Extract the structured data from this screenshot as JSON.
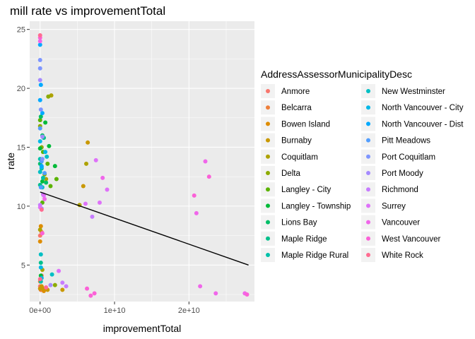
{
  "chart_data": {
    "type": "scatter",
    "title": "mill rate vs improvementTotal",
    "xlabel": "improvementTotal",
    "ylabel": "rate",
    "xlim": [
      -1400000000.0,
      28800000000.0
    ],
    "ylim": [
      1.9,
      25.7
    ],
    "x_ticks": [
      {
        "value": 0,
        "label": "0e+00"
      },
      {
        "value": 10000000000.0,
        "label": "1e+10"
      },
      {
        "value": 20000000000.0,
        "label": "2e+10"
      }
    ],
    "y_ticks": [
      {
        "value": 5,
        "label": "5"
      },
      {
        "value": 10,
        "label": "10"
      },
      {
        "value": 15,
        "label": "15"
      },
      {
        "value": 20,
        "label": "20"
      },
      {
        "value": 25,
        "label": "25"
      }
    ],
    "grid": true,
    "legend": {
      "title": "AddressAssessorMunicipalityDesc",
      "placement": "right",
      "columns": 2
    },
    "trend_line": {
      "x": [
        0,
        28000000000.0
      ],
      "y": [
        11.2,
        5.0
      ],
      "color": "#000000"
    },
    "series": [
      {
        "name": "Anmore",
        "color": "#F8766D",
        "x": [
          0,
          100000000.0,
          0,
          200000000.0
        ],
        "y": [
          3.2,
          2.9,
          7.5,
          4.1
        ]
      },
      {
        "name": "Belcarra",
        "color": "#EE7F3A",
        "x": [
          0,
          200000000.0,
          100000000.0
        ],
        "y": [
          3.6,
          7.8,
          2.9
        ]
      },
      {
        "name": "Bowen Island",
        "color": "#DE8C00",
        "x": [
          0,
          500000000.0,
          100000000.0
        ],
        "y": [
          7.0,
          2.8,
          8.3
        ]
      },
      {
        "name": "Burnaby",
        "color": "#C99800",
        "x": [
          0,
          200000000.0,
          500000000.0,
          1000000000.0,
          3000000000.0,
          6400000000.0,
          5800000000.0
        ],
        "y": [
          3.0,
          3.2,
          3.0,
          2.9,
          2.9,
          15.4,
          11.7
        ]
      },
      {
        "name": "Coquitlam",
        "color": "#AEA200",
        "x": [
          0,
          300000000.0,
          800000000.0,
          1500000000.0,
          5300000000.0,
          6200000000.0
        ],
        "y": [
          8.0,
          4.6,
          12.3,
          19.4,
          10.1,
          13.6
        ]
      },
      {
        "name": "Delta",
        "color": "#8CAB00",
        "x": [
          0,
          200000000.0,
          600000000.0,
          1100000000.0,
          2000000000.0
        ],
        "y": [
          16.8,
          15.0,
          12.7,
          19.3,
          3.3
        ]
      },
      {
        "name": "Langley - City",
        "color": "#5BB300",
        "x": [
          0,
          400000000.0,
          1000000000.0,
          1400000000.0,
          2200000000.0,
          300000000.0
        ],
        "y": [
          17.3,
          14.6,
          13.6,
          11.7,
          12.3,
          10.3
        ]
      },
      {
        "name": "Langley - Township",
        "color": "#00BA38",
        "x": [
          0,
          300000000.0,
          700000000.0,
          1200000000.0,
          2000000000.0,
          100000000.0
        ],
        "y": [
          14.9,
          12.1,
          17.1,
          15.1,
          13.4,
          4.1
        ]
      },
      {
        "name": "Lions Bay",
        "color": "#00BE67",
        "x": [
          0,
          300000000.0,
          800000000.0,
          100000000.0
        ],
        "y": [
          13.6,
          16.0,
          12.0,
          17.6
        ]
      },
      {
        "name": "Maple Ridge",
        "color": "#00C08B",
        "x": [
          0,
          200000000.0,
          500000000.0,
          100000000.0
        ],
        "y": [
          11.8,
          13.2,
          15.8,
          5.2
        ]
      },
      {
        "name": "Maple Ridge Rural",
        "color": "#00C1AA",
        "x": [
          0,
          400000000.0,
          100000000.0
        ],
        "y": [
          14.0,
          12.4,
          3.6
        ]
      },
      {
        "name": "New Westminster",
        "color": "#00BFC4",
        "x": [
          0,
          300000000.0,
          900000000.0,
          1600000000.0,
          100000000.0
        ],
        "y": [
          12.9,
          11.6,
          14.2,
          4.2,
          5.9
        ]
      },
      {
        "name": "North Vancouver - City",
        "color": "#00B8E7",
        "x": [
          0,
          200000000.0,
          700000000.0,
          100000000.0,
          200000000.0
        ],
        "y": [
          15.5,
          13.3,
          14.6,
          4.8,
          3.9
        ]
      },
      {
        "name": "North Vancouver - Dist",
        "color": "#00A9FF",
        "x": [
          0,
          100000000.0,
          300000000.0,
          0,
          200000000.0
        ],
        "y": [
          19.0,
          20.3,
          17.9,
          23.7,
          13.4
        ]
      },
      {
        "name": "Pitt Meadows",
        "color": "#529EFF",
        "x": [
          0,
          200000000.0,
          600000000.0,
          100000000.0
        ],
        "y": [
          16.6,
          13.8,
          12.8,
          11.6
        ]
      },
      {
        "name": "Port Coquitlam",
        "color": "#7E96FF",
        "x": [
          0,
          100000000.0,
          300000000.0,
          0
        ],
        "y": [
          22.4,
          18.2,
          14.0,
          21.7
        ]
      },
      {
        "name": "Port Moody",
        "color": "#A58AFF",
        "x": [
          0,
          300000000.0,
          200000000.0,
          1400000000.0
        ],
        "y": [
          20.7,
          15.9,
          9.8,
          3.3
        ]
      },
      {
        "name": "Richmond",
        "color": "#C77CFF",
        "x": [
          0,
          400000000.0,
          3000000000.0,
          3500000000.0,
          7000000000.0
        ],
        "y": [
          10.1,
          11.0,
          3.5,
          3.2,
          9.1
        ]
      },
      {
        "name": "Surrey",
        "color": "#DE71F9",
        "x": [
          0,
          500000000.0,
          2500000000.0,
          6100000000.0,
          7500000000.0,
          8000000000.0,
          9000000000.0
        ],
        "y": [
          9.9,
          10.9,
          4.5,
          10.2,
          13.9,
          10.3,
          11.4
        ]
      },
      {
        "name": "Vancouver",
        "color": "#F066EA",
        "x": [
          0,
          600000000.0,
          8400000000.0,
          21000000000.0,
          21500000000.0,
          22200000000.0,
          23600000000.0,
          27500000000.0
        ],
        "y": [
          24.0,
          10.6,
          12.4,
          9.4,
          3.2,
          13.8,
          2.6,
          2.6
        ]
      },
      {
        "name": "West Vancouver",
        "color": "#FB61D7",
        "x": [
          0,
          300000000.0,
          6300000000.0,
          6800000000.0,
          7300000000.0,
          20700000000.0,
          22700000000.0,
          27800000000.0
        ],
        "y": [
          24.3,
          7.7,
          3.0,
          2.4,
          2.6,
          10.9,
          12.5,
          2.5
        ]
      },
      {
        "name": "White Rock",
        "color": "#FF6C91",
        "x": [
          0,
          200000000.0,
          0,
          800000000.0
        ],
        "y": [
          24.5,
          9.7,
          3.8,
          3.1
        ]
      }
    ]
  }
}
